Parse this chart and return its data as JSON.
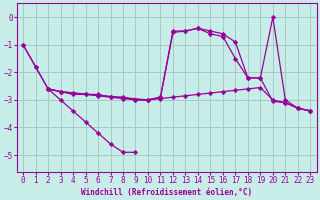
{
  "xlabel": "Windchill (Refroidissement éolien,°C)",
  "background_color": "#c8ece8",
  "grid_color": "#a0ccc8",
  "line_color": "#990099",
  "xlim": [
    -0.5,
    23.5
  ],
  "ylim": [
    -5.6,
    0.5
  ],
  "yticks": [
    0,
    -1,
    -2,
    -3,
    -4,
    -5
  ],
  "xticks": [
    0,
    1,
    2,
    3,
    4,
    5,
    6,
    7,
    8,
    9,
    10,
    11,
    12,
    13,
    14,
    15,
    16,
    17,
    18,
    19,
    20,
    21,
    22,
    23
  ],
  "lines": [
    {
      "x": [
        0,
        1,
        2,
        3,
        4,
        5,
        6,
        7,
        8,
        9
      ],
      "y": [
        -1.0,
        -1.8,
        -2.6,
        -3.0,
        -3.4,
        -3.8,
        -4.2,
        -4.6,
        -4.9,
        -4.9
      ]
    },
    {
      "x": [
        0,
        1,
        2,
        3,
        4,
        5,
        6,
        7,
        8,
        9,
        10,
        11,
        12,
        13,
        14,
        15,
        16,
        17,
        18,
        19,
        20,
        21,
        22,
        23
      ],
      "y": [
        -1.0,
        -1.8,
        -2.6,
        -2.7,
        -2.8,
        -2.8,
        -2.8,
        -2.9,
        -2.9,
        -3.0,
        -3.0,
        -2.95,
        -2.9,
        -2.85,
        -2.8,
        -2.75,
        -2.7,
        -2.65,
        -2.6,
        -2.55,
        -3.0,
        -3.1,
        -3.3,
        -3.4
      ]
    },
    {
      "x": [
        2,
        3,
        4,
        5,
        6,
        7,
        8,
        9,
        10,
        11,
        12,
        13,
        14,
        15,
        16,
        17,
        18,
        19,
        20,
        21,
        22,
        23
      ],
      "y": [
        -2.6,
        -2.7,
        -2.75,
        -2.8,
        -2.85,
        -2.9,
        -2.95,
        -3.0,
        -3.0,
        -2.9,
        -0.5,
        -0.5,
        -0.4,
        -0.5,
        -0.6,
        -0.9,
        -2.2,
        -2.2,
        0.0,
        -3.0,
        -3.3,
        -3.4
      ]
    },
    {
      "x": [
        2,
        3,
        10,
        11,
        12,
        13,
        14,
        15,
        16,
        17,
        18,
        19,
        20,
        21,
        22,
        23
      ],
      "y": [
        -2.6,
        -2.7,
        -3.0,
        -2.9,
        -0.55,
        -0.5,
        -0.4,
        -0.6,
        -0.7,
        -1.5,
        -2.2,
        -2.2,
        -3.05,
        -3.1,
        -3.3,
        -3.4
      ]
    }
  ]
}
